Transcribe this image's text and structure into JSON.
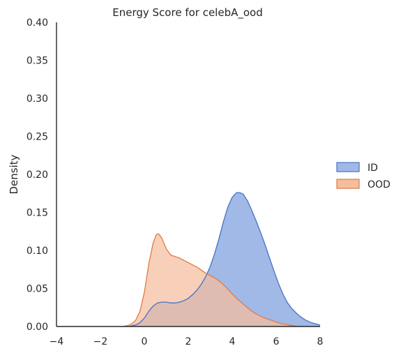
{
  "chart_data": {
    "type": "area",
    "title": "Energy Score for celebA_ood",
    "xlabel": "",
    "ylabel": "Density",
    "xlim": [
      -4,
      8
    ],
    "ylim": [
      0,
      0.4
    ],
    "xticks": [
      -4,
      -2,
      0,
      2,
      4,
      6,
      8
    ],
    "yticks": [
      0.0,
      0.05,
      0.1,
      0.15,
      0.2,
      0.25,
      0.3,
      0.35,
      0.4
    ],
    "ytick_labels": [
      "0.00",
      "0.05",
      "0.10",
      "0.15",
      "0.20",
      "0.25",
      "0.30",
      "0.35",
      "0.40"
    ],
    "xtick_labels": [
      "−4",
      "−2",
      "0",
      "2",
      "4",
      "6",
      "8"
    ],
    "grid": false,
    "legend_position": "right",
    "series": [
      {
        "name": "ID",
        "color": "#4472c4",
        "fill": "#a1b9e6",
        "x": [
          -0.7,
          -0.4,
          -0.2,
          0,
          0.2,
          0.4,
          0.6,
          0.8,
          1.0,
          1.2,
          1.4,
          1.6,
          1.8,
          2.0,
          2.2,
          2.4,
          2.6,
          2.8,
          3.0,
          3.2,
          3.4,
          3.6,
          3.8,
          4.0,
          4.2,
          4.35,
          4.5,
          4.7,
          4.9,
          5.1,
          5.3,
          5.5,
          5.7,
          5.9,
          6.1,
          6.3,
          6.5,
          6.7,
          6.9,
          7.1,
          7.3,
          7.6,
          8.0
        ],
        "y": [
          0.0,
          0.002,
          0.005,
          0.011,
          0.02,
          0.027,
          0.031,
          0.032,
          0.032,
          0.031,
          0.031,
          0.032,
          0.034,
          0.037,
          0.042,
          0.048,
          0.056,
          0.066,
          0.079,
          0.096,
          0.116,
          0.138,
          0.157,
          0.17,
          0.176,
          0.176,
          0.174,
          0.165,
          0.152,
          0.138,
          0.123,
          0.107,
          0.09,
          0.073,
          0.057,
          0.043,
          0.032,
          0.024,
          0.018,
          0.013,
          0.009,
          0.005,
          0.002
        ]
      },
      {
        "name": "OOD",
        "color": "#e07a45",
        "fill": "#f5bd9c",
        "x": [
          -1.0,
          -0.8,
          -0.6,
          -0.4,
          -0.2,
          0,
          0.2,
          0.4,
          0.55,
          0.65,
          0.8,
          1.0,
          1.2,
          1.4,
          1.6,
          1.8,
          2.0,
          2.2,
          2.4,
          2.6,
          2.8,
          3.0,
          3.2,
          3.4,
          3.6,
          3.8,
          4.0,
          4.2,
          4.4,
          4.6,
          4.8,
          5.0,
          5.2,
          5.4,
          5.6,
          5.8,
          6.0,
          6.2,
          6.4,
          6.6,
          6.8,
          7.0
        ],
        "y": [
          0.0,
          0.001,
          0.003,
          0.008,
          0.02,
          0.045,
          0.082,
          0.11,
          0.121,
          0.122,
          0.116,
          0.102,
          0.094,
          0.092,
          0.09,
          0.087,
          0.084,
          0.081,
          0.078,
          0.074,
          0.07,
          0.067,
          0.064,
          0.06,
          0.055,
          0.049,
          0.043,
          0.037,
          0.032,
          0.027,
          0.022,
          0.018,
          0.015,
          0.012,
          0.01,
          0.008,
          0.006,
          0.004,
          0.003,
          0.002,
          0.001,
          0.0
        ]
      }
    ]
  }
}
